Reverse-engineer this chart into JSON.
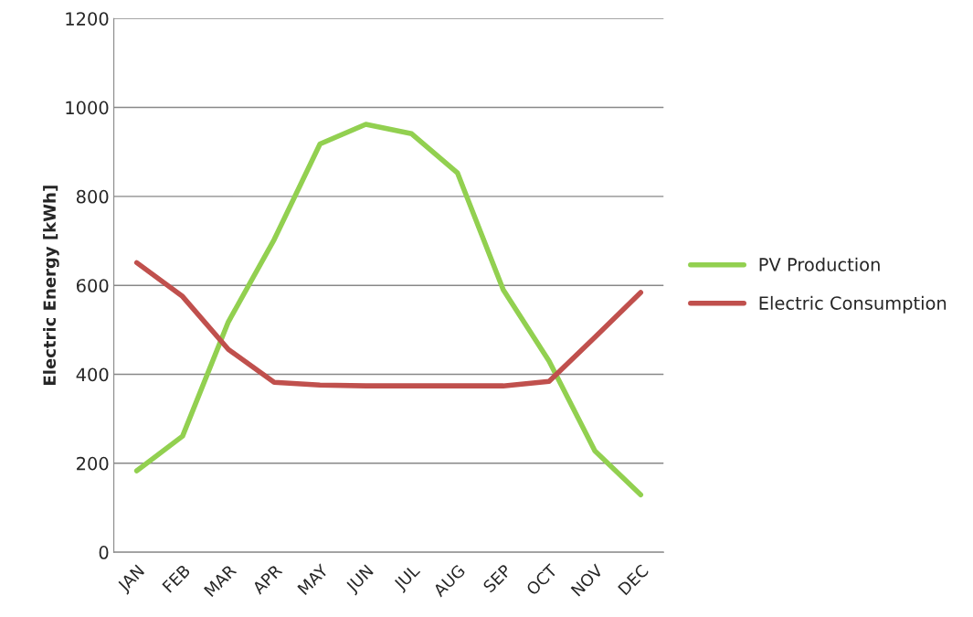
{
  "chart_data": {
    "type": "line",
    "ylabel": "Electric Energy [kWh]",
    "categories": [
      "JAN",
      "FEB",
      "MAR",
      "APR",
      "MAY",
      "JUN",
      "JUL",
      "AUG",
      "SEP",
      "OCT",
      "NOV",
      "DEC"
    ],
    "series": [
      {
        "name": "PV Production",
        "color": "#92d050",
        "values": [
          183,
          261,
          518,
          703,
          918,
          962,
          941,
          853,
          590,
          430,
          228,
          129
        ]
      },
      {
        "name": "Electric Consumption",
        "color": "#c0504d",
        "values": [
          651,
          575,
          456,
          382,
          376,
          374,
          374,
          374,
          374,
          384,
          483,
          584
        ]
      }
    ],
    "ylim": [
      0,
      1200
    ],
    "yticks": [
      0,
      200,
      400,
      600,
      800,
      1000,
      1200
    ],
    "grid": "y",
    "legend": "right",
    "marker": "none",
    "line_style": "solid"
  }
}
